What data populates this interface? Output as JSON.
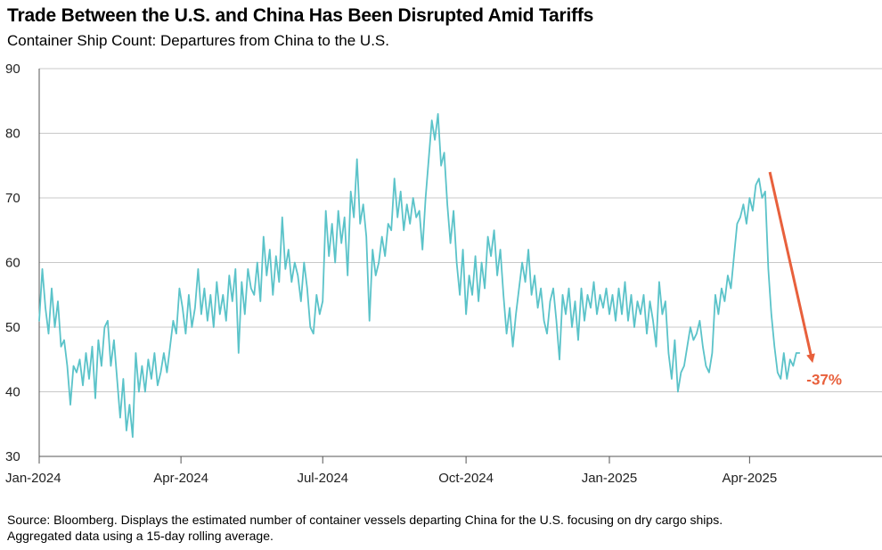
{
  "title": "Trade Between the U.S. and China Has Been Disrupted Amid Tariffs",
  "subtitle": "Container Ship Count: Departures from China to the U.S.",
  "footer": {
    "line1": "Source: Bloomberg. Displays the estimated number of container vessels departing China for the U.S. focusing on dry cargo ships.",
    "line2": "Aggregated data using a 15-day rolling average."
  },
  "colors": {
    "line": "#5bc3c9",
    "annotation": "#e8603c",
    "grid": "#c8c8c8",
    "axis": "#555555"
  },
  "chart_data": {
    "type": "line",
    "ylim": [
      30,
      90
    ],
    "yticks": [
      30,
      40,
      50,
      60,
      70,
      80,
      90
    ],
    "xlim": [
      "2024-01-01",
      "2025-06-25"
    ],
    "xticks": [
      {
        "date": "2024-01-01",
        "label": "Jan-2024"
      },
      {
        "date": "2024-04-01",
        "label": "Apr-2024"
      },
      {
        "date": "2024-07-01",
        "label": "Jul-2024"
      },
      {
        "date": "2024-10-01",
        "label": "Oct-2024"
      },
      {
        "date": "2025-01-01",
        "label": "Jan-2025"
      },
      {
        "date": "2025-04-01",
        "label": "Apr-2025"
      }
    ],
    "grid": true,
    "series": [
      {
        "points": [
          [
            "2024-01-01",
            51
          ],
          [
            "2024-01-03",
            59
          ],
          [
            "2024-01-05",
            53
          ],
          [
            "2024-01-07",
            49
          ],
          [
            "2024-01-09",
            56
          ],
          [
            "2024-01-11",
            50
          ],
          [
            "2024-01-13",
            54
          ],
          [
            "2024-01-15",
            47
          ],
          [
            "2024-01-17",
            48
          ],
          [
            "2024-01-19",
            44
          ],
          [
            "2024-01-21",
            38
          ],
          [
            "2024-01-23",
            44
          ],
          [
            "2024-01-25",
            43
          ],
          [
            "2024-01-27",
            45
          ],
          [
            "2024-01-29",
            41
          ],
          [
            "2024-01-31",
            46
          ],
          [
            "2024-02-02",
            42
          ],
          [
            "2024-02-04",
            47
          ],
          [
            "2024-02-06",
            39
          ],
          [
            "2024-02-08",
            48
          ],
          [
            "2024-02-10",
            44
          ],
          [
            "2024-02-12",
            50
          ],
          [
            "2024-02-14",
            51
          ],
          [
            "2024-02-16",
            44
          ],
          [
            "2024-02-18",
            48
          ],
          [
            "2024-02-20",
            42
          ],
          [
            "2024-02-22",
            36
          ],
          [
            "2024-02-24",
            42
          ],
          [
            "2024-02-26",
            34
          ],
          [
            "2024-02-28",
            38
          ],
          [
            "2024-03-01",
            33
          ],
          [
            "2024-03-03",
            46
          ],
          [
            "2024-03-05",
            40
          ],
          [
            "2024-03-07",
            44
          ],
          [
            "2024-03-09",
            40
          ],
          [
            "2024-03-11",
            45
          ],
          [
            "2024-03-13",
            42
          ],
          [
            "2024-03-15",
            46
          ],
          [
            "2024-03-17",
            41
          ],
          [
            "2024-03-19",
            43
          ],
          [
            "2024-03-21",
            46
          ],
          [
            "2024-03-23",
            43
          ],
          [
            "2024-03-25",
            47
          ],
          [
            "2024-03-27",
            51
          ],
          [
            "2024-03-29",
            49
          ],
          [
            "2024-03-31",
            56
          ],
          [
            "2024-04-02",
            53
          ],
          [
            "2024-04-04",
            49
          ],
          [
            "2024-04-06",
            55
          ],
          [
            "2024-04-08",
            50
          ],
          [
            "2024-04-10",
            53
          ],
          [
            "2024-04-12",
            59
          ],
          [
            "2024-04-14",
            52
          ],
          [
            "2024-04-16",
            56
          ],
          [
            "2024-04-18",
            51
          ],
          [
            "2024-04-20",
            55
          ],
          [
            "2024-04-22",
            50
          ],
          [
            "2024-04-24",
            57
          ],
          [
            "2024-04-26",
            52
          ],
          [
            "2024-04-28",
            55
          ],
          [
            "2024-04-30",
            51
          ],
          [
            "2024-05-02",
            58
          ],
          [
            "2024-05-04",
            54
          ],
          [
            "2024-05-06",
            59
          ],
          [
            "2024-05-08",
            46
          ],
          [
            "2024-05-10",
            57
          ],
          [
            "2024-05-12",
            52
          ],
          [
            "2024-05-14",
            59
          ],
          [
            "2024-05-16",
            56
          ],
          [
            "2024-05-18",
            55
          ],
          [
            "2024-05-20",
            60
          ],
          [
            "2024-05-22",
            54
          ],
          [
            "2024-05-24",
            64
          ],
          [
            "2024-05-26",
            58
          ],
          [
            "2024-05-28",
            62
          ],
          [
            "2024-05-30",
            55
          ],
          [
            "2024-06-01",
            61
          ],
          [
            "2024-06-03",
            57
          ],
          [
            "2024-06-05",
            67
          ],
          [
            "2024-06-07",
            59
          ],
          [
            "2024-06-09",
            62
          ],
          [
            "2024-06-11",
            57
          ],
          [
            "2024-06-13",
            60
          ],
          [
            "2024-06-15",
            58
          ],
          [
            "2024-06-17",
            54
          ],
          [
            "2024-06-19",
            60
          ],
          [
            "2024-06-21",
            56
          ],
          [
            "2024-06-23",
            50
          ],
          [
            "2024-06-25",
            49
          ],
          [
            "2024-06-27",
            55
          ],
          [
            "2024-06-29",
            52
          ],
          [
            "2024-07-01",
            54
          ],
          [
            "2024-07-03",
            68
          ],
          [
            "2024-07-05",
            61
          ],
          [
            "2024-07-07",
            66
          ],
          [
            "2024-07-09",
            60
          ],
          [
            "2024-07-11",
            68
          ],
          [
            "2024-07-13",
            63
          ],
          [
            "2024-07-15",
            67
          ],
          [
            "2024-07-17",
            58
          ],
          [
            "2024-07-19",
            71
          ],
          [
            "2024-07-21",
            67
          ],
          [
            "2024-07-23",
            76
          ],
          [
            "2024-07-25",
            66
          ],
          [
            "2024-07-27",
            69
          ],
          [
            "2024-07-29",
            64
          ],
          [
            "2024-07-31",
            51
          ],
          [
            "2024-08-02",
            62
          ],
          [
            "2024-08-04",
            58
          ],
          [
            "2024-08-06",
            60
          ],
          [
            "2024-08-08",
            64
          ],
          [
            "2024-08-10",
            61
          ],
          [
            "2024-08-12",
            66
          ],
          [
            "2024-08-14",
            65
          ],
          [
            "2024-08-16",
            73
          ],
          [
            "2024-08-18",
            67
          ],
          [
            "2024-08-20",
            71
          ],
          [
            "2024-08-22",
            65
          ],
          [
            "2024-08-24",
            69
          ],
          [
            "2024-08-26",
            66
          ],
          [
            "2024-08-28",
            70
          ],
          [
            "2024-08-30",
            67
          ],
          [
            "2024-09-01",
            68
          ],
          [
            "2024-09-03",
            62
          ],
          [
            "2024-09-05",
            70
          ],
          [
            "2024-09-07",
            76
          ],
          [
            "2024-09-09",
            82
          ],
          [
            "2024-09-11",
            79
          ],
          [
            "2024-09-13",
            83
          ],
          [
            "2024-09-15",
            75
          ],
          [
            "2024-09-17",
            77
          ],
          [
            "2024-09-19",
            69
          ],
          [
            "2024-09-21",
            63
          ],
          [
            "2024-09-23",
            68
          ],
          [
            "2024-09-25",
            60
          ],
          [
            "2024-09-27",
            55
          ],
          [
            "2024-09-29",
            62
          ],
          [
            "2024-10-01",
            52
          ],
          [
            "2024-10-03",
            58
          ],
          [
            "2024-10-05",
            55
          ],
          [
            "2024-10-07",
            61
          ],
          [
            "2024-10-09",
            54
          ],
          [
            "2024-10-11",
            60
          ],
          [
            "2024-10-13",
            56
          ],
          [
            "2024-10-15",
            64
          ],
          [
            "2024-10-17",
            61
          ],
          [
            "2024-10-19",
            65
          ],
          [
            "2024-10-21",
            58
          ],
          [
            "2024-10-23",
            62
          ],
          [
            "2024-10-25",
            55
          ],
          [
            "2024-10-27",
            49
          ],
          [
            "2024-10-29",
            53
          ],
          [
            "2024-10-31",
            47
          ],
          [
            "2024-11-02",
            52
          ],
          [
            "2024-11-04",
            56
          ],
          [
            "2024-11-06",
            60
          ],
          [
            "2024-11-08",
            57
          ],
          [
            "2024-11-10",
            62
          ],
          [
            "2024-11-12",
            55
          ],
          [
            "2024-11-14",
            58
          ],
          [
            "2024-11-16",
            53
          ],
          [
            "2024-11-18",
            56
          ],
          [
            "2024-11-20",
            51
          ],
          [
            "2024-11-22",
            49
          ],
          [
            "2024-11-24",
            54
          ],
          [
            "2024-11-26",
            56
          ],
          [
            "2024-11-28",
            51
          ],
          [
            "2024-11-30",
            45
          ],
          [
            "2024-12-02",
            55
          ],
          [
            "2024-12-04",
            52
          ],
          [
            "2024-12-06",
            56
          ],
          [
            "2024-12-08",
            50
          ],
          [
            "2024-12-10",
            54
          ],
          [
            "2024-12-12",
            48
          ],
          [
            "2024-12-14",
            56
          ],
          [
            "2024-12-16",
            51
          ],
          [
            "2024-12-18",
            55
          ],
          [
            "2024-12-20",
            53
          ],
          [
            "2024-12-22",
            57
          ],
          [
            "2024-12-24",
            52
          ],
          [
            "2024-12-26",
            55
          ],
          [
            "2024-12-28",
            53
          ],
          [
            "2024-12-30",
            56
          ],
          [
            "2025-01-01",
            52
          ],
          [
            "2025-01-03",
            55
          ],
          [
            "2025-01-05",
            51
          ],
          [
            "2025-01-07",
            56
          ],
          [
            "2025-01-09",
            52
          ],
          [
            "2025-01-11",
            57
          ],
          [
            "2025-01-13",
            51
          ],
          [
            "2025-01-15",
            55
          ],
          [
            "2025-01-17",
            50
          ],
          [
            "2025-01-19",
            54
          ],
          [
            "2025-01-21",
            52
          ],
          [
            "2025-01-23",
            55
          ],
          [
            "2025-01-25",
            49
          ],
          [
            "2025-01-27",
            54
          ],
          [
            "2025-01-29",
            51
          ],
          [
            "2025-01-31",
            47
          ],
          [
            "2025-02-02",
            57
          ],
          [
            "2025-02-04",
            52
          ],
          [
            "2025-02-06",
            54
          ],
          [
            "2025-02-08",
            46
          ],
          [
            "2025-02-10",
            42
          ],
          [
            "2025-02-12",
            48
          ],
          [
            "2025-02-14",
            40
          ],
          [
            "2025-02-16",
            43
          ],
          [
            "2025-02-18",
            44
          ],
          [
            "2025-02-20",
            47
          ],
          [
            "2025-02-22",
            50
          ],
          [
            "2025-02-24",
            48
          ],
          [
            "2025-02-26",
            49
          ],
          [
            "2025-02-28",
            51
          ],
          [
            "2025-03-02",
            47
          ],
          [
            "2025-03-04",
            44
          ],
          [
            "2025-03-06",
            43
          ],
          [
            "2025-03-08",
            46
          ],
          [
            "2025-03-10",
            55
          ],
          [
            "2025-03-12",
            52
          ],
          [
            "2025-03-14",
            56
          ],
          [
            "2025-03-16",
            54
          ],
          [
            "2025-03-18",
            58
          ],
          [
            "2025-03-20",
            56
          ],
          [
            "2025-03-22",
            61
          ],
          [
            "2025-03-24",
            66
          ],
          [
            "2025-03-26",
            67
          ],
          [
            "2025-03-28",
            69
          ],
          [
            "2025-03-30",
            66
          ],
          [
            "2025-04-01",
            70
          ],
          [
            "2025-04-03",
            68
          ],
          [
            "2025-04-05",
            72
          ],
          [
            "2025-04-07",
            73
          ],
          [
            "2025-04-09",
            70
          ],
          [
            "2025-04-11",
            71
          ],
          [
            "2025-04-13",
            59
          ],
          [
            "2025-04-15",
            52
          ],
          [
            "2025-04-17",
            47
          ],
          [
            "2025-04-19",
            43
          ],
          [
            "2025-04-21",
            42
          ],
          [
            "2025-04-23",
            46
          ],
          [
            "2025-04-25",
            42
          ],
          [
            "2025-04-27",
            45
          ],
          [
            "2025-04-29",
            44
          ],
          [
            "2025-05-01",
            46
          ],
          [
            "2025-05-03",
            46
          ]
        ]
      }
    ],
    "annotations": [
      {
        "label": "-37%",
        "from": [
          "2025-04-14",
          74
        ],
        "to": [
          "2025-05-11",
          45
        ]
      }
    ]
  }
}
